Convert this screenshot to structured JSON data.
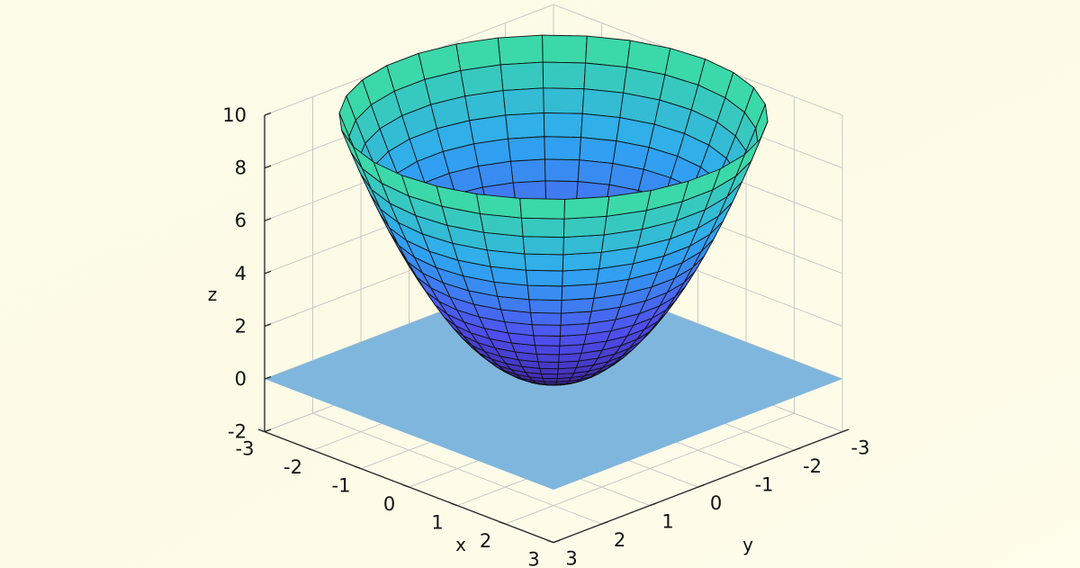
{
  "chart_data": {
    "type": "surface3d",
    "function": "z = x^2 + y^2",
    "mesh": "polar",
    "radius_max": 3.15,
    "xlabel": "x",
    "ylabel": "y",
    "zlabel": "z",
    "xlim": [
      -3,
      3
    ],
    "ylim": [
      -3,
      3
    ],
    "zlim": [
      -2,
      10
    ],
    "xticks": [
      "-3",
      "-2",
      "-1",
      "0",
      "1",
      "2",
      "3"
    ],
    "yticks": [
      "-3",
      "-2",
      "-1",
      "0",
      "1",
      "2",
      "3"
    ],
    "zticks": [
      "-2",
      "0",
      "2",
      "4",
      "6",
      "8",
      "10"
    ],
    "grid": true,
    "colormap": [
      "#3b1f98",
      "#4f4ff0",
      "#2ea8f2",
      "#3ddf9e"
    ],
    "plane": {
      "z": 0,
      "x": [
        -3,
        3
      ],
      "y": [
        -3,
        3
      ],
      "color": "#7fb6dd"
    }
  }
}
